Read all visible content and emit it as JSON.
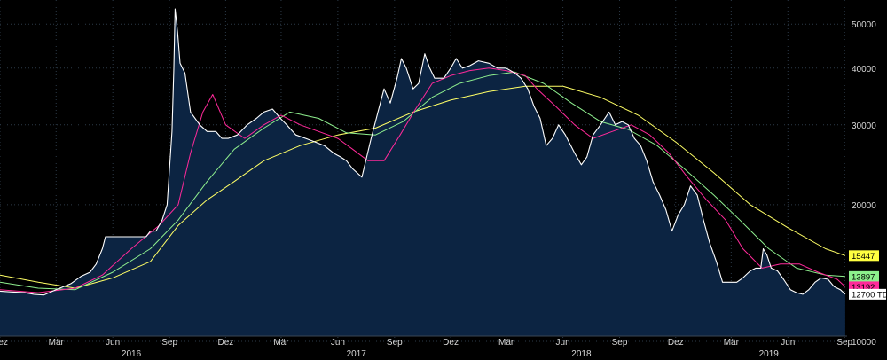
{
  "chart_data": {
    "type": "area",
    "title": "",
    "xlabel": "",
    "ylabel": "",
    "yscale": "log",
    "ylim": [
      10000,
      55000
    ],
    "yticks": [
      10000,
      20000,
      30000,
      40000,
      50000
    ],
    "ytick_labels": [
      "10000",
      "20000",
      "30000",
      "40000",
      "50000"
    ],
    "xlim": [
      "2015-12-01",
      "2019-09-05"
    ],
    "x_month_labels": [
      {
        "date": "2015-12-01",
        "label": "Dez"
      },
      {
        "date": "2016-03-01",
        "label": "Mär"
      },
      {
        "date": "2016-06-01",
        "label": "Jun"
      },
      {
        "date": "2016-09-01",
        "label": "Sep"
      },
      {
        "date": "2016-12-01",
        "label": "Dez"
      },
      {
        "date": "2017-03-01",
        "label": "Mär"
      },
      {
        "date": "2017-06-01",
        "label": "Jun"
      },
      {
        "date": "2017-09-01",
        "label": "Sep"
      },
      {
        "date": "2017-12-01",
        "label": "Dez"
      },
      {
        "date": "2018-03-01",
        "label": "Mär"
      },
      {
        "date": "2018-06-01",
        "label": "Jun"
      },
      {
        "date": "2018-09-01",
        "label": "Sep"
      },
      {
        "date": "2018-12-01",
        "label": "Dez"
      },
      {
        "date": "2019-03-01",
        "label": "Mär"
      },
      {
        "date": "2019-06-01",
        "label": "Jun"
      },
      {
        "date": "2019-09-01",
        "label": "Sep"
      }
    ],
    "x_year_labels": [
      {
        "date": "2016-07-01",
        "label": "2016"
      },
      {
        "date": "2017-07-01",
        "label": "2017"
      },
      {
        "date": "2018-07-01",
        "label": "2018"
      },
      {
        "date": "2019-05-01",
        "label": "2019"
      }
    ],
    "grid": true,
    "colors": {
      "background": "#000000",
      "area_fill": "#0c2442",
      "price_line": "#ffffff",
      "ma_short": "#ff2a9a",
      "ma_mid": "#8ff08f",
      "ma_long": "#ffff66",
      "grid": "#2c3a48",
      "text": "#d8d8d8"
    },
    "last_value_tags": [
      {
        "series": "ma_long",
        "text": "15447",
        "value": 15447,
        "color": "#ffff40"
      },
      {
        "series": "ma_mid",
        "text": "13897",
        "value": 13897,
        "color": "#8cf08c"
      },
      {
        "series": "ma_short",
        "text": "13192",
        "value": 13192,
        "color": "#ff2a9a"
      },
      {
        "series": "price",
        "text": "12700 TD",
        "value": 12700,
        "color": "#ffffff"
      }
    ],
    "series": [
      {
        "key": "price",
        "x": [
          "2015-12-01",
          "2015-12-20",
          "2016-01-10",
          "2016-01-25",
          "2016-02-10",
          "2016-03-01",
          "2016-03-25",
          "2016-04-10",
          "2016-04-25",
          "2016-05-05",
          "2016-05-15",
          "2016-05-20",
          "2016-06-01",
          "2016-07-01",
          "2016-07-25",
          "2016-08-01",
          "2016-08-10",
          "2016-08-20",
          "2016-08-28",
          "2016-09-05",
          "2016-09-08",
          "2016-09-10",
          "2016-09-14",
          "2016-09-18",
          "2016-09-22",
          "2016-09-26",
          "2016-10-05",
          "2016-10-20",
          "2016-11-01",
          "2016-11-15",
          "2016-11-25",
          "2016-12-05",
          "2016-12-20",
          "2017-01-05",
          "2017-01-20",
          "2017-02-01",
          "2017-02-15",
          "2017-02-28",
          "2017-03-10",
          "2017-03-25",
          "2017-04-10",
          "2017-04-25",
          "2017-05-10",
          "2017-05-25",
          "2017-06-05",
          "2017-06-15",
          "2017-06-25",
          "2017-07-10",
          "2017-07-25",
          "2017-08-05",
          "2017-08-15",
          "2017-08-25",
          "2017-09-05",
          "2017-09-12",
          "2017-09-20",
          "2017-10-01",
          "2017-10-10",
          "2017-10-20",
          "2017-10-28",
          "2017-11-05",
          "2017-11-20",
          "2017-12-01",
          "2017-12-10",
          "2017-12-20",
          "2018-01-01",
          "2018-01-15",
          "2018-02-01",
          "2018-02-15",
          "2018-03-01",
          "2018-03-15",
          "2018-03-25",
          "2018-04-05",
          "2018-04-15",
          "2018-04-25",
          "2018-05-05",
          "2018-05-15",
          "2018-05-25",
          "2018-06-05",
          "2018-06-20",
          "2018-07-01",
          "2018-07-10",
          "2018-07-20",
          "2018-08-01",
          "2018-08-15",
          "2018-08-25",
          "2018-09-05",
          "2018-09-15",
          "2018-09-25",
          "2018-10-05",
          "2018-10-15",
          "2018-10-25",
          "2018-11-05",
          "2018-11-15",
          "2018-11-25",
          "2018-12-05",
          "2018-12-15",
          "2018-12-25",
          "2019-01-05",
          "2019-01-15",
          "2019-01-25",
          "2019-02-05",
          "2019-02-15",
          "2019-03-01",
          "2019-03-10",
          "2019-03-20",
          "2019-04-01",
          "2019-04-10",
          "2019-04-18",
          "2019-04-22",
          "2019-04-28",
          "2019-05-05",
          "2019-05-15",
          "2019-05-25",
          "2019-06-05",
          "2019-06-15",
          "2019-06-25",
          "2019-07-05",
          "2019-07-15",
          "2019-07-25",
          "2019-08-05",
          "2019-08-15",
          "2019-08-25",
          "2019-09-02"
        ],
        "values": [
          12900,
          12850,
          12800,
          12700,
          12650,
          13000,
          13400,
          13900,
          14200,
          14800,
          16000,
          17000,
          17000,
          17000,
          17000,
          17500,
          17500,
          18500,
          20000,
          29000,
          40000,
          54000,
          48000,
          41000,
          40000,
          39000,
          32000,
          30000,
          29000,
          29000,
          28000,
          28000,
          28500,
          30000,
          31000,
          32000,
          32500,
          31000,
          30000,
          28500,
          28000,
          27500,
          27000,
          26000,
          25500,
          25000,
          24000,
          23000,
          28000,
          32000,
          36000,
          33500,
          38000,
          42000,
          40000,
          36000,
          37000,
          43000,
          40000,
          38000,
          38000,
          40000,
          42000,
          40000,
          40500,
          41500,
          41000,
          40000,
          40000,
          39000,
          38000,
          36000,
          33000,
          31000,
          27000,
          28000,
          30000,
          28500,
          26000,
          24500,
          25500,
          28500,
          30000,
          32000,
          30000,
          30500,
          30000,
          28000,
          27000,
          25000,
          22500,
          21000,
          19500,
          17500,
          19000,
          20000,
          22000,
          21000,
          18500,
          16500,
          15000,
          13500,
          13500,
          13500,
          13800,
          14300,
          14500,
          14500,
          16000,
          15500,
          14500,
          14300,
          13700,
          13000,
          12800,
          12700,
          13000,
          13500,
          13800,
          13700,
          13200,
          13000,
          12700
        ]
      },
      {
        "key": "ma_short",
        "x": [
          "2015-12-01",
          "2016-02-01",
          "2016-04-01",
          "2016-05-15",
          "2016-07-01",
          "2016-08-15",
          "2016-09-15",
          "2016-10-05",
          "2016-10-25",
          "2016-11-10",
          "2016-12-01",
          "2017-01-01",
          "2017-02-01",
          "2017-03-01",
          "2017-04-01",
          "2017-05-01",
          "2017-06-01",
          "2017-06-25",
          "2017-07-20",
          "2017-08-15",
          "2017-09-10",
          "2017-10-05",
          "2017-11-01",
          "2017-12-01",
          "2018-01-01",
          "2018-02-01",
          "2018-03-01",
          "2018-04-01",
          "2018-04-20",
          "2018-05-20",
          "2018-06-20",
          "2018-07-20",
          "2018-08-20",
          "2018-09-20",
          "2018-10-20",
          "2018-11-20",
          "2018-12-20",
          "2019-01-20",
          "2019-02-20",
          "2019-03-20",
          "2019-04-20",
          "2019-05-20",
          "2019-06-20",
          "2019-07-20",
          "2019-08-20",
          "2019-09-02"
        ],
        "values": [
          13000,
          12800,
          13100,
          14000,
          16000,
          18000,
          20000,
          26000,
          32000,
          35000,
          30000,
          28000,
          30000,
          31500,
          30000,
          29000,
          28000,
          26500,
          25000,
          25000,
          28500,
          32500,
          37000,
          38500,
          39500,
          40000,
          39500,
          38500,
          36000,
          33000,
          30000,
          28000,
          29000,
          30000,
          28500,
          26000,
          23000,
          20500,
          18500,
          16000,
          14500,
          14800,
          14800,
          14200,
          13700,
          13192
        ]
      },
      {
        "key": "ma_mid",
        "x": [
          "2015-12-01",
          "2016-02-01",
          "2016-04-01",
          "2016-06-01",
          "2016-08-01",
          "2016-09-15",
          "2016-11-01",
          "2016-12-15",
          "2017-02-01",
          "2017-03-15",
          "2017-05-01",
          "2017-06-15",
          "2017-08-01",
          "2017-09-15",
          "2017-11-01",
          "2017-12-15",
          "2018-02-01",
          "2018-03-15",
          "2018-05-01",
          "2018-06-15",
          "2018-08-01",
          "2018-09-15",
          "2018-11-01",
          "2018-12-15",
          "2019-02-01",
          "2019-03-15",
          "2019-05-01",
          "2019-06-15",
          "2019-08-01",
          "2019-09-02"
        ],
        "values": [
          13500,
          13100,
          13000,
          14200,
          16000,
          18500,
          22500,
          26500,
          29500,
          32000,
          31000,
          28800,
          28500,
          30500,
          34500,
          37000,
          38500,
          39200,
          37000,
          33500,
          30500,
          29300,
          27000,
          24000,
          21000,
          18500,
          16000,
          14500,
          14000,
          13897
        ]
      },
      {
        "key": "ma_long",
        "x": [
          "2015-12-01",
          "2016-02-01",
          "2016-04-01",
          "2016-06-01",
          "2016-08-01",
          "2016-09-15",
          "2016-11-01",
          "2016-12-15",
          "2017-02-01",
          "2017-04-01",
          "2017-06-01",
          "2017-08-01",
          "2017-10-01",
          "2017-12-01",
          "2018-02-01",
          "2018-04-01",
          "2018-06-01",
          "2018-08-01",
          "2018-10-01",
          "2018-12-01",
          "2019-02-01",
          "2019-04-01",
          "2019-06-01",
          "2019-08-01",
          "2019-09-02"
        ],
        "values": [
          14000,
          13500,
          13100,
          13800,
          15000,
          18000,
          20500,
          22500,
          25000,
          27000,
          28500,
          29500,
          32000,
          34000,
          35500,
          36500,
          36500,
          34500,
          31500,
          27500,
          23500,
          20000,
          17800,
          16000,
          15447
        ]
      }
    ]
  }
}
